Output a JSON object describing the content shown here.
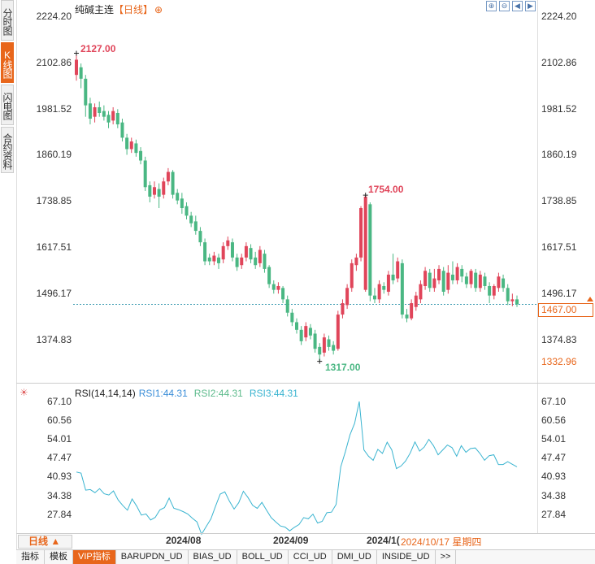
{
  "side_tabs": [
    {
      "label": "分时图",
      "active": false
    },
    {
      "label": "K线图",
      "active": true
    },
    {
      "label": "闪电图",
      "active": false
    },
    {
      "label": "合约资料",
      "active": false
    }
  ],
  "header": {
    "name": "纯碱主连",
    "period": "【日线】",
    "add_symbol": "⊕"
  },
  "price_axis": [
    "2224.20",
    "2102.86",
    "1981.52",
    "1860.19",
    "1738.85",
    "1617.51",
    "1496.17",
    "1374.83"
  ],
  "current_price": "1467.00",
  "low_tag": "1332.96",
  "markers": {
    "high1": "2127.00",
    "high2": "1754.00",
    "low": "1317.00"
  },
  "rsi": {
    "title": "RSI(14,14,14)",
    "rsi1": "RSI1:44.31",
    "rsi2": "RSI2:44.31",
    "rsi3": "RSI3:44.31",
    "axis": [
      "67.10",
      "60.56",
      "54.01",
      "47.47",
      "40.93",
      "34.38",
      "27.84"
    ]
  },
  "time_axis": {
    "period_button": "日线 ▲",
    "labels": [
      "2024/08",
      "2024/09",
      "2024/1("
    ],
    "cursor_date": "2024/10/17 星期四"
  },
  "bottom_tabs": [
    {
      "label": "指标",
      "active": false
    },
    {
      "label": "模板",
      "active": false
    },
    {
      "label": "VIP指标",
      "active": true
    },
    {
      "label": "BARUPDN_UD",
      "active": false
    },
    {
      "label": "BIAS_UD",
      "active": false
    },
    {
      "label": "BOLL_UD",
      "active": false
    },
    {
      "label": "CCI_UD",
      "active": false
    },
    {
      "label": "DMI_UD",
      "active": false
    },
    {
      "label": "INSIDE_UD",
      "active": false
    },
    {
      "label": ">>",
      "active": false
    }
  ],
  "colors": {
    "up": "#e0455a",
    "down": "#4ab783",
    "rsi": "#3ab4d0",
    "accent": "#e8661b"
  },
  "chart_data": {
    "type": "candlestick",
    "ylim": [
      1317,
      2224.2
    ],
    "candles": [
      [
        2070,
        2110,
        2055,
        2127
      ],
      [
        2090,
        2060,
        2035,
        2100
      ],
      [
        2060,
        1990,
        1960,
        2070
      ],
      [
        1995,
        1955,
        1940,
        2010
      ],
      [
        1960,
        1985,
        1945,
        1995
      ],
      [
        1985,
        1970,
        1960,
        2000
      ],
      [
        1975,
        1960,
        1950,
        1990
      ],
      [
        1965,
        1945,
        1930,
        1975
      ],
      [
        1950,
        1975,
        1940,
        1985
      ],
      [
        1970,
        1940,
        1930,
        1980
      ],
      [
        1945,
        1905,
        1895,
        1955
      ],
      [
        1905,
        1875,
        1860,
        1915
      ],
      [
        1875,
        1895,
        1865,
        1905
      ],
      [
        1890,
        1865,
        1855,
        1900
      ],
      [
        1870,
        1845,
        1835,
        1880
      ],
      [
        1845,
        1775,
        1765,
        1855
      ],
      [
        1780,
        1750,
        1735,
        1790
      ],
      [
        1755,
        1775,
        1745,
        1790
      ],
      [
        1770,
        1750,
        1720,
        1785
      ],
      [
        1755,
        1790,
        1745,
        1800
      ],
      [
        1790,
        1815,
        1780,
        1825
      ],
      [
        1815,
        1755,
        1745,
        1820
      ],
      [
        1760,
        1740,
        1730,
        1770
      ],
      [
        1745,
        1720,
        1705,
        1760
      ],
      [
        1725,
        1700,
        1690,
        1735
      ],
      [
        1700,
        1680,
        1670,
        1710
      ],
      [
        1685,
        1660,
        1650,
        1700
      ],
      [
        1660,
        1630,
        1620,
        1670
      ],
      [
        1630,
        1580,
        1570,
        1640
      ],
      [
        1590,
        1580,
        1570,
        1600
      ],
      [
        1580,
        1595,
        1570,
        1605
      ],
      [
        1590,
        1575,
        1560,
        1600
      ],
      [
        1585,
        1620,
        1575,
        1630
      ],
      [
        1620,
        1635,
        1610,
        1645
      ],
      [
        1630,
        1590,
        1580,
        1640
      ],
      [
        1590,
        1565,
        1555,
        1600
      ],
      [
        1570,
        1590,
        1560,
        1600
      ],
      [
        1590,
        1620,
        1580,
        1630
      ],
      [
        1615,
        1585,
        1575,
        1625
      ],
      [
        1590,
        1570,
        1560,
        1605
      ],
      [
        1575,
        1610,
        1565,
        1620
      ],
      [
        1600,
        1560,
        1550,
        1610
      ],
      [
        1565,
        1520,
        1510,
        1570
      ],
      [
        1520,
        1505,
        1495,
        1530
      ],
      [
        1505,
        1515,
        1495,
        1525
      ],
      [
        1510,
        1480,
        1470,
        1515
      ],
      [
        1480,
        1445,
        1435,
        1490
      ],
      [
        1445,
        1420,
        1410,
        1455
      ],
      [
        1420,
        1400,
        1390,
        1430
      ],
      [
        1400,
        1370,
        1360,
        1410
      ],
      [
        1380,
        1410,
        1370,
        1420
      ],
      [
        1405,
        1385,
        1375,
        1415
      ],
      [
        1390,
        1350,
        1340,
        1400
      ],
      [
        1355,
        1335,
        1317,
        1365
      ],
      [
        1340,
        1380,
        1330,
        1390
      ],
      [
        1375,
        1355,
        1345,
        1385
      ],
      [
        1360,
        1345,
        1335,
        1370
      ],
      [
        1350,
        1440,
        1345,
        1450
      ],
      [
        1440,
        1470,
        1430,
        1480
      ],
      [
        1465,
        1510,
        1455,
        1520
      ],
      [
        1510,
        1575,
        1500,
        1585
      ],
      [
        1570,
        1590,
        1555,
        1600
      ],
      [
        1590,
        1720,
        1580,
        1725
      ],
      [
        1505,
        1750,
        1500,
        1754
      ],
      [
        1730,
        1490,
        1475,
        1735
      ],
      [
        1490,
        1480,
        1470,
        1510
      ],
      [
        1480,
        1520,
        1470,
        1530
      ],
      [
        1515,
        1505,
        1495,
        1525
      ],
      [
        1500,
        1545,
        1490,
        1555
      ],
      [
        1545,
        1530,
        1520,
        1600
      ],
      [
        1535,
        1580,
        1525,
        1590
      ],
      [
        1575,
        1440,
        1430,
        1585
      ],
      [
        1440,
        1430,
        1420,
        1455
      ],
      [
        1430,
        1470,
        1425,
        1480
      ],
      [
        1460,
        1490,
        1450,
        1500
      ],
      [
        1480,
        1520,
        1470,
        1530
      ],
      [
        1515,
        1555,
        1505,
        1565
      ],
      [
        1550,
        1510,
        1500,
        1560
      ],
      [
        1510,
        1535,
        1500,
        1560
      ],
      [
        1530,
        1560,
        1520,
        1570
      ],
      [
        1555,
        1500,
        1490,
        1565
      ],
      [
        1505,
        1550,
        1495,
        1570
      ],
      [
        1545,
        1530,
        1520,
        1580
      ],
      [
        1530,
        1565,
        1520,
        1575
      ],
      [
        1560,
        1540,
        1525,
        1570
      ],
      [
        1540,
        1520,
        1510,
        1550
      ],
      [
        1520,
        1555,
        1510,
        1560
      ],
      [
        1550,
        1510,
        1500,
        1560
      ],
      [
        1510,
        1545,
        1500,
        1555
      ],
      [
        1540,
        1515,
        1505,
        1550
      ],
      [
        1515,
        1490,
        1470,
        1525
      ],
      [
        1490,
        1515,
        1480,
        1520
      ],
      [
        1510,
        1540,
        1500,
        1550
      ],
      [
        1535,
        1510,
        1500,
        1545
      ],
      [
        1510,
        1475,
        1465,
        1520
      ],
      [
        1475,
        1480,
        1462,
        1495
      ],
      [
        1480,
        1467,
        1460,
        1490
      ]
    ],
    "rsi_ylim": [
      21.3,
      73.64
    ],
    "rsi_values": [
      42.5,
      42.1,
      36.2,
      36.4,
      35.3,
      36.7,
      34.9,
      34.5,
      35.9,
      32.8,
      30.8,
      29.2,
      33.1,
      30.6,
      27.5,
      27.9,
      25.8,
      26.7,
      29.3,
      30.1,
      33.4,
      29.9,
      29.4,
      28.7,
      27.9,
      26.4,
      25.1,
      20.8,
      23.5,
      26.2,
      30.6,
      34.8,
      35.6,
      32.3,
      29.6,
      31.8,
      35.8,
      33.6,
      30.9,
      29.8,
      31.9,
      29.2,
      26.6,
      25.1,
      23.7,
      23.3,
      22.0,
      23.2,
      24.2,
      26.6,
      26.2,
      27.8,
      24.7,
      25.3,
      28.3,
      28.5,
      31.2,
      44.3,
      49.6,
      55.5,
      59.5,
      67.1,
      50.2,
      48.0,
      46.6,
      50.4,
      49.0,
      52.9,
      50.2,
      43.7,
      44.6,
      46.4,
      49.2,
      53.0,
      49.8,
      51.2,
      53.9,
      51.7,
      48.5,
      50.2,
      51.9,
      51.0,
      48.0,
      51.7,
      49.4,
      50.7,
      50.9,
      49.0,
      46.6,
      48.2,
      48.5,
      45.1,
      45.1,
      46.1,
      45.2,
      44.3
    ]
  }
}
